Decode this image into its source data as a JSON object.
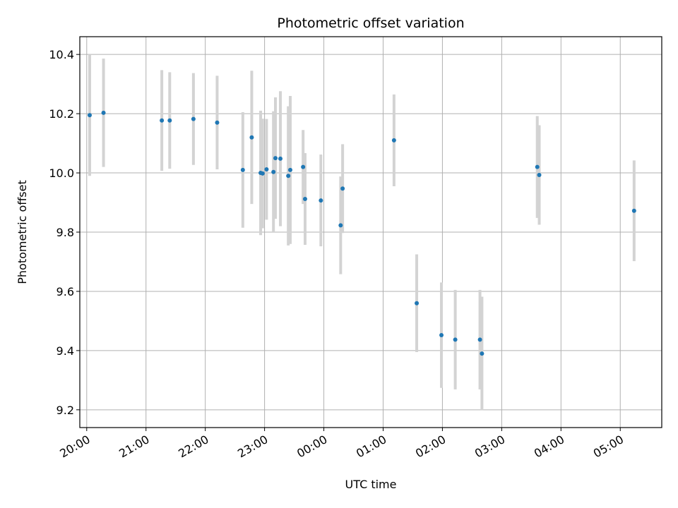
{
  "chart_data": {
    "type": "scatter",
    "title": "Photometric offset variation",
    "xlabel": "UTC time",
    "ylabel": "Photometric offset",
    "x_axis_type": "time",
    "x_start_date": "",
    "xlim": [
      "19:53",
      "05:42"
    ],
    "ylim": [
      9.14,
      10.46
    ],
    "grid": true,
    "legend": "none",
    "colors": {
      "marker": "#1f77b4",
      "errorbar": "#d3d3d3",
      "grid": "#b0b0b0",
      "axes": "#000000"
    },
    "xticks": [
      "20:00",
      "21:00",
      "22:00",
      "23:00",
      "00:00",
      "01:00",
      "02:00",
      "03:00",
      "04:00",
      "05:00"
    ],
    "yticks": [
      "9.2",
      "9.4",
      "9.6",
      "9.8",
      "10.0",
      "10.2",
      "10.4"
    ],
    "points": [
      {
        "x": "20:03",
        "y": 10.195,
        "err": 0.205
      },
      {
        "x": "20:17",
        "y": 10.203,
        "err": 0.183
      },
      {
        "x": "21:16",
        "y": 10.177,
        "err": 0.17
      },
      {
        "x": "21:24",
        "y": 10.177,
        "err": 0.163
      },
      {
        "x": "21:48",
        "y": 10.182,
        "err": 0.155
      },
      {
        "x": "22:12",
        "y": 10.17,
        "err": 0.158
      },
      {
        "x": "22:38",
        "y": 10.01,
        "err": 0.195
      },
      {
        "x": "22:47",
        "y": 10.12,
        "err": 0.225
      },
      {
        "x": "22:56",
        "y": 10.0,
        "err": 0.21
      },
      {
        "x": "22:58",
        "y": 9.998,
        "err": 0.185
      },
      {
        "x": "23:02",
        "y": 10.012,
        "err": 0.17
      },
      {
        "x": "23:09",
        "y": 10.003,
        "err": 0.205
      },
      {
        "x": "23:11",
        "y": 10.05,
        "err": 0.205
      },
      {
        "x": "23:16",
        "y": 10.048,
        "err": 0.228
      },
      {
        "x": "23:24",
        "y": 9.99,
        "err": 0.235
      },
      {
        "x": "23:26",
        "y": 10.01,
        "err": 0.25
      },
      {
        "x": "23:39",
        "y": 10.02,
        "err": 0.125
      },
      {
        "x": "23:41",
        "y": 9.912,
        "err": 0.155
      },
      {
        "x": "23:57",
        "y": 9.907,
        "err": 0.155
      },
      {
        "x": "00:17",
        "y": 9.823,
        "err": 0.165
      },
      {
        "x": "00:19",
        "y": 9.947,
        "err": 0.15
      },
      {
        "x": "01:11",
        "y": 10.11,
        "err": 0.155
      },
      {
        "x": "01:34",
        "y": 9.56,
        "err": 0.165
      },
      {
        "x": "01:59",
        "y": 9.452,
        "err": 0.178
      },
      {
        "x": "02:13",
        "y": 9.437,
        "err": 0.168
      },
      {
        "x": "02:38",
        "y": 9.437,
        "err": 0.168
      },
      {
        "x": "02:40",
        "y": 9.39,
        "err": 0.192
      },
      {
        "x": "03:36",
        "y": 10.02,
        "err": 0.172
      },
      {
        "x": "03:38",
        "y": 9.993,
        "err": 0.168
      },
      {
        "x": "05:14",
        "y": 9.872,
        "err": 0.17
      }
    ]
  }
}
